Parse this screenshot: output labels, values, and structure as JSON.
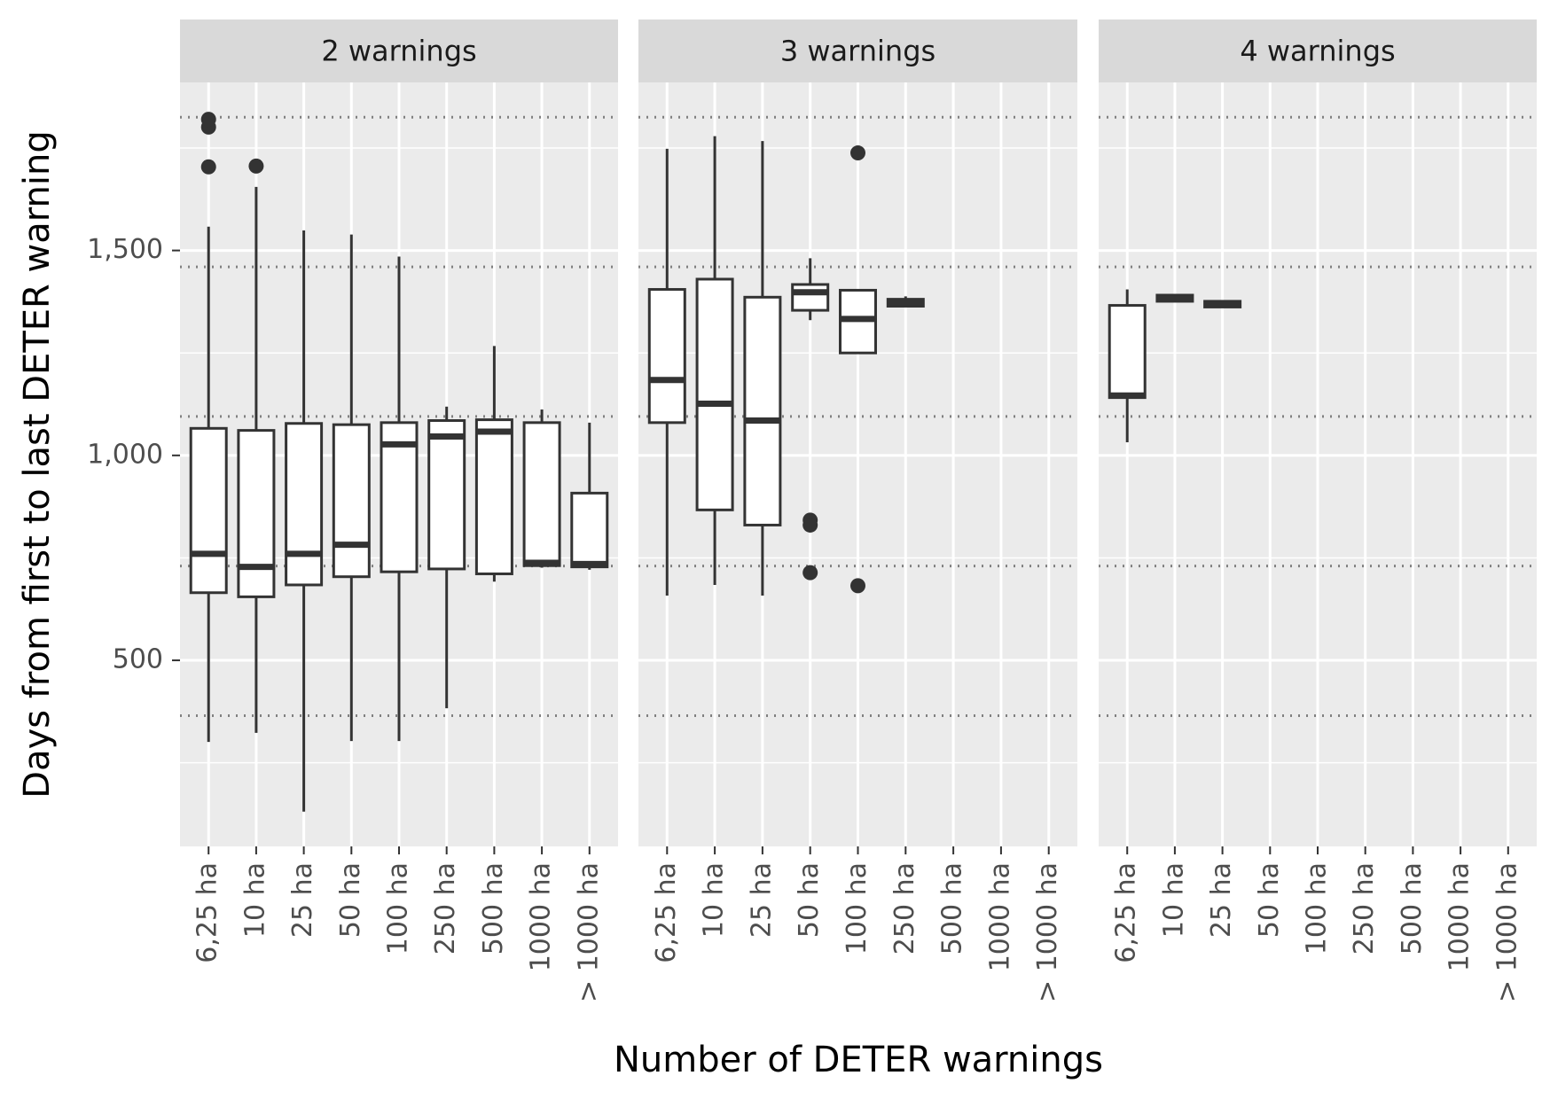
{
  "chart_data": {
    "type": "box",
    "xlabel": "Number of DETER warnings",
    "ylabel": "Days from first to last DETER warning",
    "categories": [
      "6,25 ha",
      "10 ha",
      "25 ha",
      "50 ha",
      "100 ha",
      "250 ha",
      "500 ha",
      "1000 ha",
      "> 1000 ha"
    ],
    "facets": [
      {
        "title": "2 warnings",
        "boxes": [
          {
            "whislo": 301,
            "q1": 665,
            "med": 760,
            "q3": 1066,
            "whishi": 1558,
            "outliers": [
              1704,
              1801,
              1820
            ]
          },
          {
            "whislo": 323,
            "q1": 655,
            "med": 728,
            "q3": 1061,
            "whishi": 1655,
            "outliers": [
              1706
            ]
          },
          {
            "whislo": 131,
            "q1": 684,
            "med": 760,
            "q3": 1078,
            "whishi": 1549
          },
          {
            "whislo": 303,
            "q1": 704,
            "med": 782,
            "q3": 1075,
            "whishi": 1539
          },
          {
            "whislo": 303,
            "q1": 716,
            "med": 1027,
            "q3": 1080,
            "whishi": 1485
          },
          {
            "whislo": 383,
            "q1": 723,
            "med": 1046,
            "q3": 1085,
            "whishi": 1119
          },
          {
            "whislo": 692,
            "q1": 711,
            "med": 1058,
            "q3": 1087,
            "whishi": 1267
          },
          {
            "whislo": 726,
            "q1": 731,
            "med": 738,
            "q3": 1080,
            "whishi": 1112
          },
          {
            "whislo": 721,
            "q1": 728,
            "med": 735,
            "q3": 908,
            "whishi": 1080
          }
        ]
      },
      {
        "title": "3 warnings",
        "boxes": [
          {
            "whislo": 658,
            "q1": 1080,
            "med": 1184,
            "q3": 1405,
            "whishi": 1748
          },
          {
            "whislo": 684,
            "q1": 867,
            "med": 1126,
            "q3": 1430,
            "whishi": 1779
          },
          {
            "whislo": 658,
            "q1": 830,
            "med": 1085,
            "q3": 1386,
            "whishi": 1767
          },
          {
            "whislo": 1330,
            "q1": 1354,
            "med": 1398,
            "q3": 1417,
            "whishi": 1481,
            "outliers": [
              842,
              830,
              714
            ]
          },
          {
            "whislo": 1250,
            "q1": 1250,
            "med": 1333,
            "q3": 1403,
            "whishi": 1403,
            "outliers": [
              1738,
              682
            ]
          },
          {
            "whislo": 1362,
            "q1": 1364,
            "med": 1374,
            "q3": 1381,
            "whishi": 1388
          },
          null,
          null,
          null
        ]
      },
      {
        "title": "4 warnings",
        "boxes": [
          {
            "whislo": 1032,
            "q1": 1141,
            "med": 1146,
            "q3": 1366,
            "whishi": 1405
          },
          {
            "whislo": 1376,
            "q1": 1376,
            "med": 1383,
            "q3": 1391,
            "whishi": 1391
          },
          {
            "whislo": 1362,
            "q1": 1362,
            "med": 1369,
            "q3": 1376,
            "whishi": 1376
          },
          null,
          null,
          null,
          null,
          null,
          null
        ]
      }
    ],
    "ylim": [
      46,
      1910
    ],
    "yticks": [
      {
        "value": 500,
        "label": "500"
      },
      {
        "value": 1000,
        "label": "1,000"
      },
      {
        "value": 1500,
        "label": "1,500"
      }
    ],
    "minor_yticks": [
      250,
      750,
      1250,
      1750
    ],
    "reference_lines": [
      365,
      730,
      1095,
      1460,
      1825
    ],
    "grid": true
  }
}
